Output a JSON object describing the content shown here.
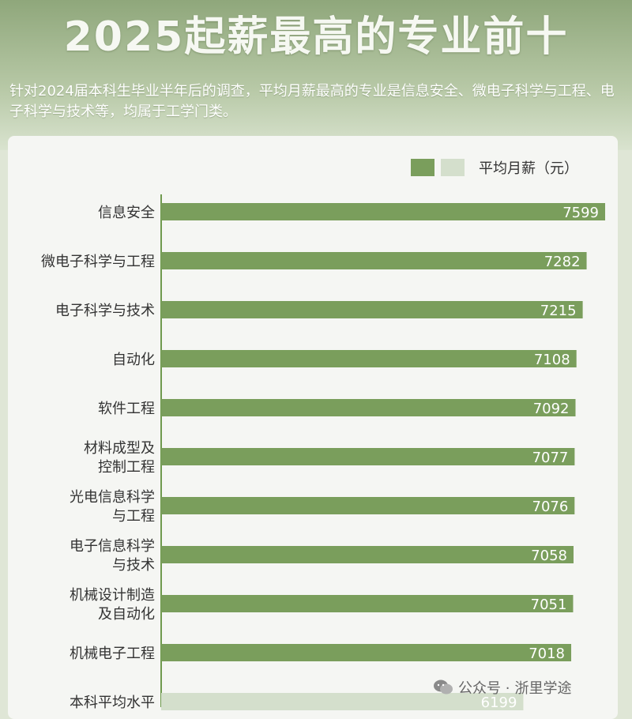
{
  "title": "2025起薪最高的专业前十",
  "subtitle": "针对2024届本科生毕业半年后的调查，平均月薪最高的专业是信息安全、微电子科学与工程、电子科学与技术等，均属于工学门类。",
  "legend": {
    "label": "平均月薪（元）"
  },
  "colors": {
    "primary": "#7a9e5c",
    "average": "#d4dfcc"
  },
  "watermark": {
    "prefix": "公众号 · ",
    "name": "浙里学途"
  },
  "chart_data": {
    "type": "bar",
    "orientation": "horizontal",
    "categories": [
      "信息安全",
      "微电子科学与工程",
      "电子科学与技术",
      "自动化",
      "软件工程",
      "材料成型及控制工程",
      "光电信息科学与工程",
      "电子信息科学与技术",
      "机械设计制造及自动化",
      "机械电子工程",
      "本科平均水平"
    ],
    "label_lines": [
      [
        "信息安全"
      ],
      [
        "微电子科学与工程"
      ],
      [
        "电子科学与技术"
      ],
      [
        "自动化"
      ],
      [
        "软件工程"
      ],
      [
        "材料成型及",
        "控制工程"
      ],
      [
        "光电信息科学",
        "与工程"
      ],
      [
        "电子信息科学",
        "与技术"
      ],
      [
        "机械设计制造",
        "及自动化"
      ],
      [
        "机械电子工程"
      ],
      [
        "本科平均水平"
      ]
    ],
    "values": [
      7599,
      7282,
      7215,
      7108,
      7092,
      7077,
      7076,
      7058,
      7051,
      7018,
      6199
    ],
    "value_labels": [
      "7599",
      "7282",
      "7215",
      "7108",
      "7092",
      "7077",
      "7076",
      "7058",
      "7051",
      "7018",
      "6199"
    ],
    "highlight_last": true,
    "legend_position": "top-right",
    "grid": false
  }
}
